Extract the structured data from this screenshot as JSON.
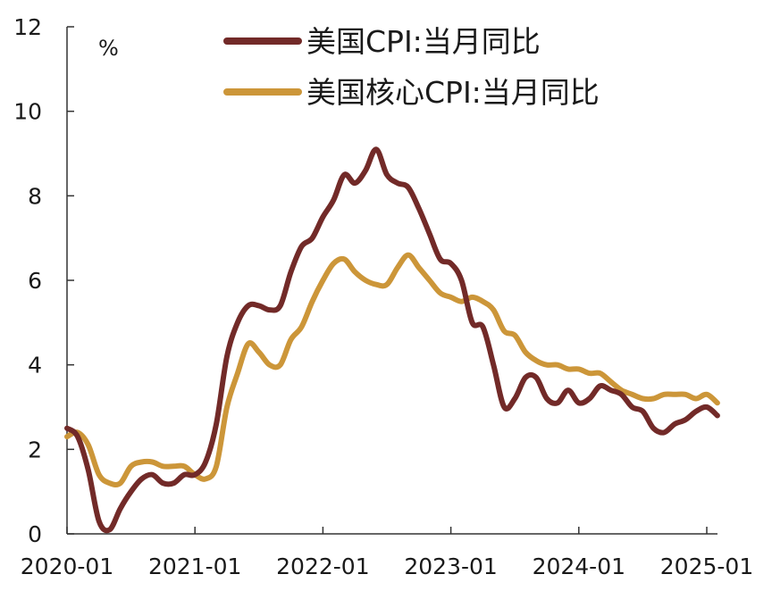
{
  "chart_data": {
    "type": "line",
    "title": "",
    "xlabel": "",
    "ylabel": "%",
    "ylim": [
      0,
      12
    ],
    "y_ticks": [
      0,
      2,
      4,
      6,
      8,
      10,
      12
    ],
    "x_range": [
      "2020-01",
      "2025-02"
    ],
    "x_ticks": [
      "2020-01",
      "2021-01",
      "2022-01",
      "2023-01",
      "2024-01",
      "2025-01"
    ],
    "grid": false,
    "legend_position": "top-right",
    "series": [
      {
        "name": "美国CPI:当月同比",
        "color": "#722a28",
        "x": [
          "2020-01",
          "2020-02",
          "2020-03",
          "2020-04",
          "2020-05",
          "2020-06",
          "2020-07",
          "2020-08",
          "2020-09",
          "2020-10",
          "2020-11",
          "2020-12",
          "2021-01",
          "2021-02",
          "2021-03",
          "2021-04",
          "2021-05",
          "2021-06",
          "2021-07",
          "2021-08",
          "2021-09",
          "2021-10",
          "2021-11",
          "2021-12",
          "2022-01",
          "2022-02",
          "2022-03",
          "2022-04",
          "2022-05",
          "2022-06",
          "2022-07",
          "2022-08",
          "2022-09",
          "2022-10",
          "2022-11",
          "2022-12",
          "2023-01",
          "2023-02",
          "2023-03",
          "2023-04",
          "2023-05",
          "2023-06",
          "2023-07",
          "2023-08",
          "2023-09",
          "2023-10",
          "2023-11",
          "2023-12",
          "2024-01",
          "2024-02",
          "2024-03",
          "2024-04",
          "2024-05",
          "2024-06",
          "2024-07",
          "2024-08",
          "2024-09",
          "2024-10",
          "2024-11",
          "2024-12",
          "2025-01",
          "2025-02"
        ],
        "values": [
          2.5,
          2.3,
          1.5,
          0.3,
          0.1,
          0.6,
          1.0,
          1.3,
          1.4,
          1.2,
          1.2,
          1.4,
          1.4,
          1.7,
          2.6,
          4.2,
          5.0,
          5.4,
          5.4,
          5.3,
          5.4,
          6.2,
          6.8,
          7.0,
          7.5,
          7.9,
          8.5,
          8.3,
          8.6,
          9.1,
          8.5,
          8.3,
          8.2,
          7.7,
          7.1,
          6.5,
          6.4,
          6.0,
          5.0,
          4.9,
          4.0,
          3.0,
          3.2,
          3.7,
          3.7,
          3.2,
          3.1,
          3.4,
          3.1,
          3.2,
          3.5,
          3.4,
          3.3,
          3.0,
          2.9,
          2.5,
          2.4,
          2.6,
          2.7,
          2.9,
          3.0,
          2.8
        ]
      },
      {
        "name": "美国核心CPI:当月同比",
        "color": "#cc9639",
        "x": [
          "2020-01",
          "2020-02",
          "2020-03",
          "2020-04",
          "2020-05",
          "2020-06",
          "2020-07",
          "2020-08",
          "2020-09",
          "2020-10",
          "2020-11",
          "2020-12",
          "2021-01",
          "2021-02",
          "2021-03",
          "2021-04",
          "2021-05",
          "2021-06",
          "2021-07",
          "2021-08",
          "2021-09",
          "2021-10",
          "2021-11",
          "2021-12",
          "2022-01",
          "2022-02",
          "2022-03",
          "2022-04",
          "2022-05",
          "2022-06",
          "2022-07",
          "2022-08",
          "2022-09",
          "2022-10",
          "2022-11",
          "2022-12",
          "2023-01",
          "2023-02",
          "2023-03",
          "2023-04",
          "2023-05",
          "2023-06",
          "2023-07",
          "2023-08",
          "2023-09",
          "2023-10",
          "2023-11",
          "2023-12",
          "2024-01",
          "2024-02",
          "2024-03",
          "2024-04",
          "2024-05",
          "2024-06",
          "2024-07",
          "2024-08",
          "2024-09",
          "2024-10",
          "2024-11",
          "2024-12",
          "2025-01",
          "2025-02"
        ],
        "values": [
          2.3,
          2.4,
          2.1,
          1.4,
          1.2,
          1.2,
          1.6,
          1.7,
          1.7,
          1.6,
          1.6,
          1.6,
          1.4,
          1.3,
          1.6,
          3.0,
          3.8,
          4.5,
          4.3,
          4.0,
          4.0,
          4.6,
          4.9,
          5.5,
          6.0,
          6.4,
          6.5,
          6.2,
          6.0,
          5.9,
          5.9,
          6.3,
          6.6,
          6.3,
          6.0,
          5.7,
          5.6,
          5.5,
          5.6,
          5.5,
          5.3,
          4.8,
          4.7,
          4.3,
          4.1,
          4.0,
          4.0,
          3.9,
          3.9,
          3.8,
          3.8,
          3.6,
          3.4,
          3.3,
          3.2,
          3.2,
          3.3,
          3.3,
          3.3,
          3.2,
          3.3,
          3.1
        ]
      }
    ]
  }
}
